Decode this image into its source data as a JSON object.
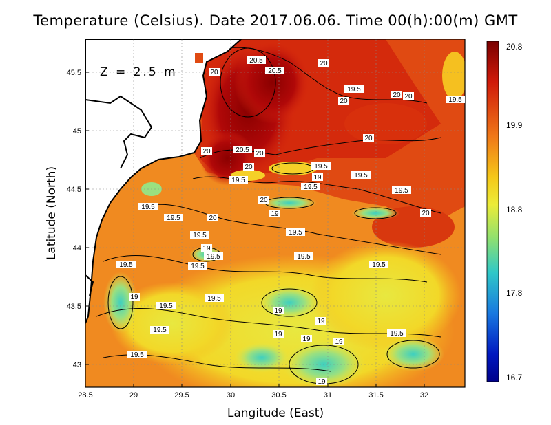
{
  "title": "Temperature (Celsius). Date 2017.06.06. Time 00(h):00(m)  GMT",
  "x_axis": {
    "title": "Langitude (East)",
    "ticks": [
      "28.5",
      "29",
      "29.5",
      "30",
      "30.5",
      "31",
      "31.5",
      "32"
    ]
  },
  "y_axis": {
    "title": "Latitude (North)",
    "ticks": [
      "45.5",
      "45",
      "44.5",
      "44",
      "43.5",
      "43"
    ]
  },
  "depth_label": "Z = 2.5 m",
  "colorbar": {
    "labels": [
      "20.8",
      "19.9",
      "18.8",
      "17.8",
      "16.7"
    ],
    "colors": [
      "#7a0000",
      "#d01a0a",
      "#f07818",
      "#f5c818",
      "#ecec38",
      "#8ee070",
      "#2ec8c8",
      "#1878e0",
      "#0018c0",
      "#00008a"
    ]
  },
  "contour_labels": [
    {
      "text": "20.5"
    },
    {
      "text": "20.5"
    },
    {
      "text": "20"
    },
    {
      "text": "20"
    },
    {
      "text": "19.5"
    },
    {
      "text": "20"
    },
    {
      "text": "20"
    },
    {
      "text": "20"
    },
    {
      "text": "19.5"
    },
    {
      "text": "20"
    },
    {
      "text": "20.5"
    },
    {
      "text": "20"
    },
    {
      "text": "20"
    },
    {
      "text": "20"
    },
    {
      "text": "19.5"
    },
    {
      "text": "19"
    },
    {
      "text": "19.5"
    },
    {
      "text": "19.5"
    },
    {
      "text": "19.5"
    },
    {
      "text": "20"
    },
    {
      "text": "19.5"
    },
    {
      "text": "19"
    },
    {
      "text": "19.5"
    },
    {
      "text": "20"
    },
    {
      "text": "20"
    },
    {
      "text": "19.5"
    },
    {
      "text": "19"
    },
    {
      "text": "19.5"
    },
    {
      "text": "19.5"
    },
    {
      "text": "19.5"
    },
    {
      "text": "19.5"
    },
    {
      "text": "19.5"
    },
    {
      "text": "19"
    },
    {
      "text": "19.5"
    },
    {
      "text": "19.5"
    },
    {
      "text": "19.5"
    },
    {
      "text": "19.5"
    },
    {
      "text": "19"
    },
    {
      "text": "19"
    },
    {
      "text": "19.5"
    },
    {
      "text": "19"
    },
    {
      "text": "19"
    },
    {
      "text": "19"
    },
    {
      "text": "19.5"
    },
    {
      "text": "19.5"
    },
    {
      "text": "19"
    }
  ]
}
